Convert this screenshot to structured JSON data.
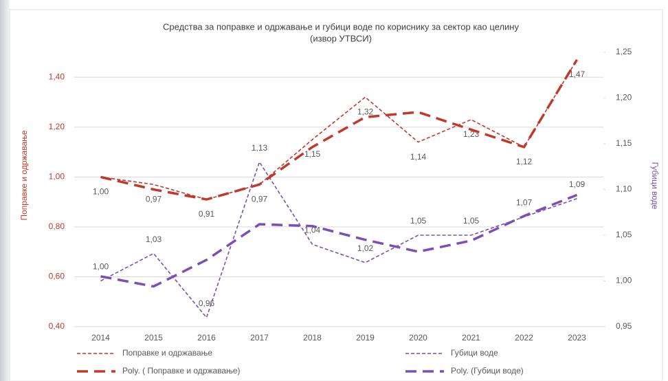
{
  "chart_data": {
    "type": "line",
    "title": "Средства за поправке и одржавање и губици воде по кориснику за сектор као целину",
    "subtitle": "(извор УТВСИ)",
    "y_label": "Поправке и одржавање",
    "y2_label": "Губици воде",
    "categories": [
      "2014",
      "2015",
      "2016",
      "2017",
      "2018",
      "2019",
      "2020",
      "2021",
      "2022",
      "2023"
    ],
    "ylim": [
      0.4,
      1.5
    ],
    "yticks": [
      {
        "value": 0.4,
        "label": "0,40"
      },
      {
        "value": 0.6,
        "label": "0,60"
      },
      {
        "value": 0.8,
        "label": "0,80"
      },
      {
        "value": 1.0,
        "label": "1,00"
      },
      {
        "value": 1.2,
        "label": "1,20"
      },
      {
        "value": 1.4,
        "label": "1,40"
      }
    ],
    "y2lim": [
      0.95,
      1.25
    ],
    "y2ticks": [
      {
        "value": 0.95,
        "label": "0,95"
      },
      {
        "value": 1.0,
        "label": "1,00"
      },
      {
        "value": 1.05,
        "label": "1,05"
      },
      {
        "value": 1.1,
        "label": "1,10"
      },
      {
        "value": 1.15,
        "label": "1,15"
      },
      {
        "value": 1.2,
        "label": "1,20"
      },
      {
        "value": 1.25,
        "label": "1,25"
      }
    ],
    "grid": true,
    "series": [
      {
        "name": "Поправке и одржавање",
        "color": "#c0392b",
        "dash": "short",
        "values": [
          1.0,
          0.97,
          0.91,
          0.97,
          1.15,
          1.32,
          1.14,
          1.23,
          1.12,
          1.47
        ],
        "value_labels": [
          "1,00",
          "0,97",
          "0,91",
          "0,97",
          "1,15",
          "1,32",
          "1,14",
          "1,23",
          "1,12",
          "1,47"
        ]
      },
      {
        "name": "Губици воде",
        "color": "#7b4fb5",
        "dash": "short",
        "axis": "y2",
        "values": [
          1.0,
          1.03,
          0.96,
          1.13,
          1.04,
          1.02,
          1.05,
          1.05,
          1.07,
          1.09
        ],
        "value_labels": [
          "1,00",
          "1,03",
          "0,96",
          "1,13",
          "1,04",
          "1,02",
          "1,05",
          "1,05",
          "1,07",
          "1,09"
        ]
      },
      {
        "name": "Poly. ( Поправке и одржавање)",
        "color": "#c0392b",
        "dash": "long",
        "values": [
          1.0,
          0.95,
          0.91,
          0.97,
          1.12,
          1.24,
          1.26,
          1.19,
          1.12,
          1.47
        ]
      },
      {
        "name": "Poly. (Губици воде)",
        "color": "#7b4fb5",
        "dash": "long",
        "axis": "y2",
        "values": [
          1.005,
          0.994,
          1.023,
          1.062,
          1.06,
          1.045,
          1.032,
          1.044,
          1.071,
          1.094
        ]
      }
    ]
  }
}
